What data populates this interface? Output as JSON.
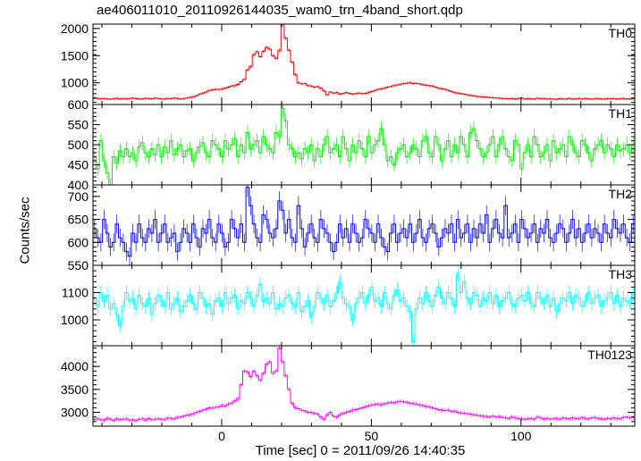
{
  "title": "ae406011010_20110926144035_wam0_trn_4band_short.qdp",
  "ylabel": "Counts/sec",
  "xlabel": "Time [sec] 0 = 2011/09/26 14:40:35",
  "chart_data": {
    "type": "line",
    "title": "ae406011010_20110926144035_wam0_trn_4band_short.qdp",
    "xlabel": "Time [sec] 0 = 2011/09/26 14:40:35",
    "ylabel": "Counts/sec",
    "xlim": [
      -43,
      138
    ],
    "xticks": [
      0,
      50,
      100
    ],
    "bin_seconds": 1,
    "panels": [
      {
        "name": "TH0",
        "color": "#ff0000",
        "ylim": [
          600,
          2080
        ],
        "yticks": [
          600,
          1000,
          1500,
          2000
        ],
        "values": [
          720,
          710,
          705,
          712,
          700,
          698,
          705,
          715,
          700,
          708,
          702,
          712,
          720,
          710,
          705,
          700,
          715,
          708,
          702,
          718,
          710,
          705,
          700,
          712,
          708,
          718,
          710,
          702,
          710,
          720,
          730,
          745,
          760,
          790,
          810,
          830,
          860,
          870,
          880,
          880,
          885,
          900,
          920,
          940,
          950,
          970,
          1020,
          1060,
          1240,
          1300,
          1520,
          1570,
          1480,
          1580,
          1650,
          1620,
          1500,
          1450,
          1600,
          2080,
          1820,
          1600,
          1380,
          1150,
          1000,
          980,
          985,
          950,
          940,
          920,
          930,
          900,
          850,
          780,
          830,
          810,
          820,
          790,
          800,
          820,
          805,
          790,
          800,
          810,
          800,
          805,
          820,
          840,
          860,
          880,
          890,
          900,
          920,
          930,
          950,
          960,
          975,
          985,
          990,
          1000,
          985,
          990,
          980,
          965,
          955,
          950,
          940,
          920,
          900,
          890,
          880,
          860,
          840,
          820,
          810,
          800,
          790,
          780,
          770,
          760,
          750,
          745,
          740,
          735,
          730,
          725,
          720,
          718,
          712,
          708,
          705,
          710,
          700,
          712,
          720,
          700,
          708,
          702,
          700,
          715,
          705,
          712,
          700,
          706,
          700,
          695,
          710,
          704,
          700,
          715,
          700,
          705,
          710,
          700,
          712,
          706,
          700,
          705,
          710,
          700,
          702,
          708,
          704,
          712,
          700,
          705,
          710,
          700,
          706,
          710
        ]
      },
      {
        "name": "TH1",
        "color": "#00ee00",
        "ylim": [
          400,
          600
        ],
        "yticks": [
          400,
          450,
          500,
          550
        ],
        "values": [
          470,
          440,
          510,
          460,
          430,
          400,
          470,
          455,
          485,
          470,
          490,
          470,
          480,
          460,
          495,
          505,
          480,
          470,
          490,
          475,
          500,
          470,
          495,
          480,
          510,
          475,
          490,
          500,
          470,
          485,
          490,
          460,
          480,
          495,
          505,
          480,
          470,
          510,
          500,
          490,
          470,
          510,
          490,
          500,
          515,
          470,
          500,
          480,
          530,
          490,
          500,
          510,
          480,
          520,
          500,
          490,
          480,
          530,
          520,
          590,
          560,
          500,
          490,
          470,
          480,
          465,
          490,
          480,
          500,
          460,
          490,
          470,
          500,
          520,
          480,
          490,
          500,
          470,
          520,
          490,
          460,
          500,
          480,
          510,
          490,
          470,
          520,
          480,
          500,
          510,
          540,
          500,
          460,
          470,
          450,
          480,
          490,
          500,
          470,
          480,
          500,
          490,
          470,
          510,
          520,
          480,
          470,
          520,
          500,
          460,
          490,
          510,
          470,
          500,
          480,
          520,
          500,
          470,
          530,
          540,
          510,
          490,
          470,
          480,
          500,
          520,
          470,
          500,
          520,
          490,
          470,
          460,
          510,
          500,
          440,
          480,
          500,
          470,
          520,
          500,
          470,
          480,
          500,
          460,
          510,
          480,
          490,
          500,
          470,
          520,
          500,
          480,
          470,
          510,
          500,
          480,
          460,
          490,
          500,
          510,
          480,
          500,
          490,
          470,
          500,
          485,
          490,
          500,
          480,
          500
        ]
      },
      {
        "name": "TH2",
        "color": "#0000ff",
        "ylim": [
          550,
          725
        ],
        "yticks": [
          550,
          600,
          650,
          700
        ],
        "values": [
          630,
          610,
          600,
          650,
          620,
          590,
          600,
          640,
          610,
          600,
          580,
          570,
          620,
          600,
          640,
          610,
          600,
          630,
          620,
          650,
          600,
          620,
          640,
          600,
          610,
          620,
          580,
          600,
          630,
          620,
          600,
          640,
          610,
          590,
          630,
          620,
          650,
          610,
          600,
          640,
          620,
          590,
          600,
          650,
          630,
          610,
          640,
          600,
          720,
          680,
          640,
          610,
          600,
          660,
          650,
          620,
          610,
          630,
          690,
          670,
          620,
          650,
          610,
          600,
          680,
          630,
          590,
          620,
          640,
          610,
          600,
          650,
          630,
          620,
          600,
          580,
          600,
          640,
          610,
          630,
          600,
          640,
          620,
          600,
          610,
          650,
          630,
          620,
          600,
          640,
          610,
          590,
          580,
          620,
          640,
          600,
          620,
          630,
          610,
          640,
          600,
          620,
          650,
          610,
          600,
          630,
          640,
          620,
          590,
          610,
          630,
          620,
          640,
          600,
          650,
          610,
          620,
          640,
          600,
          630,
          610,
          640,
          620,
          660,
          600,
          630,
          650,
          620,
          610,
          680,
          610,
          620,
          640,
          600,
          650,
          630,
          610,
          620,
          640,
          600,
          630,
          620,
          650,
          610,
          600,
          620,
          640,
          630,
          600,
          620,
          650,
          610,
          630,
          600,
          620,
          640,
          610,
          630,
          620,
          600,
          640,
          620,
          610,
          650,
          630,
          620,
          640,
          610,
          600,
          640
        ]
      },
      {
        "name": "TH3",
        "color": "#00ffff",
        "ylim": [
          905,
          1200
        ],
        "yticks": [
          1000,
          1100
        ],
        "values": [
          1080,
          1050,
          1100,
          1070,
          1090,
          1040,
          1060,
          1020,
          980,
          1050,
          1100,
          1070,
          1080,
          1040,
          1090,
          1060,
          1050,
          1080,
          1020,
          1060,
          1090,
          1070,
          1050,
          1100,
          1040,
          1060,
          1080,
          1030,
          1050,
          1070,
          1090,
          1060,
          1040,
          1100,
          1080,
          1050,
          1060,
          1020,
          1070,
          1080,
          1050,
          1100,
          1060,
          1080,
          1090,
          1040,
          1070,
          1060,
          1100,
          1080,
          1050,
          1090,
          1130,
          1070,
          1080,
          1060,
          1100,
          1040,
          1060,
          1050,
          1080,
          1090,
          1060,
          1050,
          1100,
          1030,
          1050,
          1070,
          1010,
          1050,
          1100,
          1080,
          1060,
          1090,
          1050,
          1070,
          1100,
          1140,
          1080,
          1060,
          1050,
          1000,
          1060,
          1080,
          1100,
          1060,
          1090,
          1120,
          1070,
          1080,
          1050,
          1100,
          1060,
          1040,
          1090,
          1110,
          1070,
          1080,
          1050,
          1030,
          920,
          1040,
          1080,
          1060,
          1100,
          1070,
          1050,
          1090,
          1120,
          1080,
          1060,
          1100,
          1080,
          1050,
          1170,
          1100,
          1140,
          1080,
          1060,
          1100,
          1090,
          1050,
          1080,
          1070,
          1100,
          1060,
          1090,
          1050,
          1070,
          1080,
          1100,
          1060,
          1050,
          1080,
          1090,
          1070,
          1100,
          1060,
          1050,
          1100,
          1080,
          1060,
          1090,
          1050,
          1080,
          1030,
          1060,
          1080,
          1070,
          1100,
          1060,
          1090,
          1080,
          1050,
          1070,
          1100,
          1060,
          1080,
          1090,
          1050,
          1070,
          1080,
          1100,
          1060,
          1090,
          1050,
          1080,
          1070,
          1060,
          1100
        ]
      },
      {
        "name": "TH0123",
        "color": "#ff00ff",
        "ylim": [
          2700,
          4450
        ],
        "yticks": [
          3000,
          3500,
          4000
        ],
        "values": [
          2850,
          2860,
          2840,
          2830,
          2870,
          2850,
          2820,
          2860,
          2840,
          2850,
          2860,
          2830,
          2840,
          2820,
          2850,
          2860,
          2830,
          2870,
          2840,
          2850,
          2860,
          2850,
          2840,
          2880,
          2870,
          2860,
          2890,
          2900,
          2920,
          2940,
          2950,
          2970,
          3000,
          3020,
          3050,
          3070,
          3100,
          3090,
          3110,
          3120,
          3150,
          3140,
          3180,
          3200,
          3250,
          3300,
          3600,
          3900,
          3880,
          3780,
          3900,
          3800,
          3700,
          3850,
          4050,
          4100,
          3850,
          3900,
          4400,
          4100,
          3800,
          3500,
          3200,
          3100,
          3080,
          3050,
          3030,
          3000,
          3000,
          2980,
          2960,
          2900,
          2850,
          2950,
          3000,
          2920,
          2900,
          2950,
          2980,
          3000,
          3020,
          3050,
          3060,
          3080,
          3100,
          3120,
          3140,
          3160,
          3170,
          3180,
          3160,
          3190,
          3200,
          3220,
          3210,
          3230,
          3240,
          3230,
          3220,
          3200,
          3190,
          3180,
          3160,
          3150,
          3130,
          3120,
          3100,
          3080,
          3060,
          3050,
          3040,
          3050,
          3020,
          3030,
          3000,
          2990,
          2980,
          2970,
          2960,
          2950,
          2940,
          2930,
          2920,
          2910,
          2900,
          2920,
          2900,
          2910,
          2890,
          2880,
          2870,
          2900,
          2880,
          2870,
          2860,
          2850,
          2860,
          2870,
          2850,
          2900,
          2880,
          2860,
          2870,
          2850,
          2860,
          2870,
          2850,
          2880,
          2870,
          2860,
          2880,
          2870,
          2860,
          2890,
          2870,
          2860,
          2880,
          2890,
          2870,
          2860,
          2850,
          2870,
          2860,
          2880,
          2870,
          2860,
          2890,
          2900,
          2880,
          2900
        ]
      }
    ]
  }
}
